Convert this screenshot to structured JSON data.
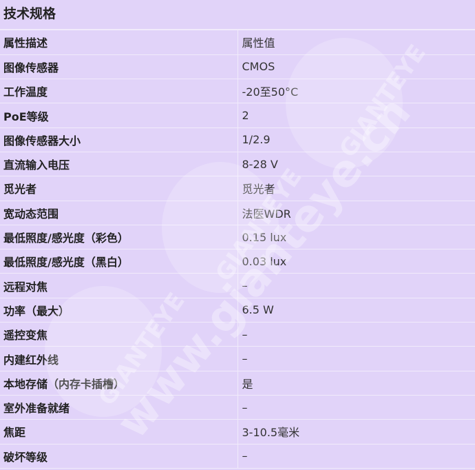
{
  "title": "技术规格",
  "rows": [
    {
      "k": "属性描述",
      "v": "属性值"
    },
    {
      "k": "图像传感器",
      "v": "CMOS"
    },
    {
      "k": "工作温度",
      "v": "-20至50°C"
    },
    {
      "k": "PoE等级",
      "v": "2"
    },
    {
      "k": "图像传感器大小",
      "v": "1/2.9"
    },
    {
      "k": "直流输入电压",
      "v": "8-28 V"
    },
    {
      "k": "觅光者",
      "v": "觅光者"
    },
    {
      "k": "宽动态范围",
      "v": "法医WDR"
    },
    {
      "k": "最低照度/感光度（彩色）",
      "v": "0.15 lux"
    },
    {
      "k": "最低照度/感光度（黑白）",
      "v": "0.03 lux"
    },
    {
      "k": "远程对焦",
      "v": "–"
    },
    {
      "k": "功率（最大）",
      "v": "6.5 W"
    },
    {
      "k": "遥控变焦",
      "v": "–"
    },
    {
      "k": "内建红外线",
      "v": "–"
    },
    {
      "k": "本地存储（内存卡插槽）",
      "v": "是"
    },
    {
      "k": "室外准备就绪",
      "v": "–"
    },
    {
      "k": "焦距",
      "v": "3-10.5毫米"
    },
    {
      "k": "破坏等级",
      "v": "–"
    }
  ],
  "watermark": {
    "logo": "GIANTEYE",
    "url": "www.gianteye.cn"
  }
}
